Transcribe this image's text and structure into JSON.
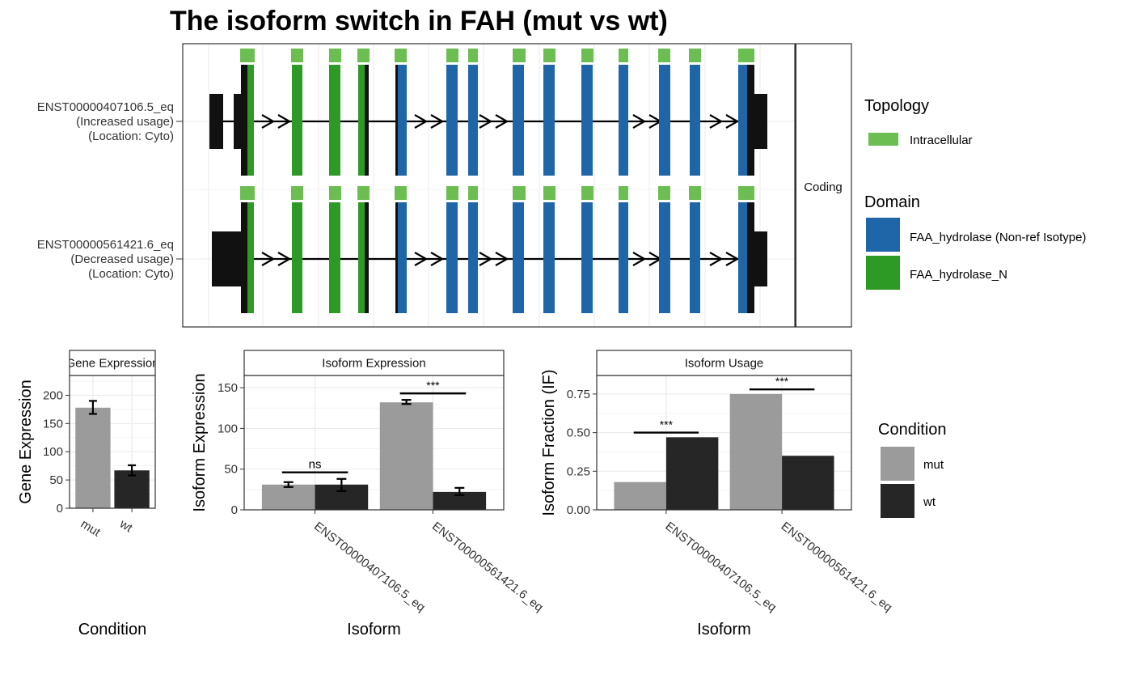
{
  "title": "The isoform switch in FAH (mut vs wt)",
  "colors": {
    "topology": "#6dbe52",
    "domain_nonref": "#1f66a8",
    "domain_n": "#2e9a26",
    "exon": "#111111",
    "mut": "#9b9b9b",
    "wt": "#262626",
    "grid": "#ebebeb",
    "border": "#333333"
  },
  "structure": {
    "strip_label": "Coding",
    "isoforms": [
      {
        "name": "ENST00000407106.5_eq",
        "usage": "(Increased usage)",
        "location": "(Location: Cyto)"
      },
      {
        "name": "ENST00000561421.6_eq",
        "usage": "(Decreased usage)",
        "location": "(Location: Cyto)"
      }
    ]
  },
  "legend": {
    "topology_title": "Topology",
    "topology_items": [
      {
        "label": "Intracellular",
        "color": "#6dbe52"
      }
    ],
    "domain_title": "Domain",
    "domain_items": [
      {
        "label": "FAA_hydrolase (Non-ref Isotype)",
        "color": "#1f66a8"
      },
      {
        "label": "FAA_hydrolase_N",
        "color": "#2e9a26"
      }
    ],
    "condition_title": "Condition",
    "condition_items": [
      {
        "label": "mut",
        "color": "#9b9b9b"
      },
      {
        "label": "wt",
        "color": "#262626"
      }
    ]
  },
  "chart_data": [
    {
      "type": "bar",
      "strip": "Gene Expression",
      "xlabel": "Condition",
      "ylabel": "Gene Expression",
      "ylim": [
        0,
        235
      ],
      "yticks": [
        0,
        50,
        100,
        150,
        200
      ],
      "categories": [
        "mut",
        "wt"
      ],
      "values": [
        178,
        67
      ],
      "errors": [
        [
          167,
          190
        ],
        [
          58,
          76
        ]
      ]
    },
    {
      "type": "bar",
      "strip": "Isoform Expression",
      "xlabel": "Isoform",
      "ylabel": "Isoform Expression",
      "ylim": [
        0,
        165
      ],
      "yticks": [
        0,
        50,
        100,
        150
      ],
      "categories": [
        "ENST00000407106.5_eq",
        "ENST00000561421.6_eq"
      ],
      "series": [
        {
          "name": "mut",
          "values": [
            31,
            132
          ],
          "errors": [
            [
              28,
              34
            ],
            [
              130,
              135
            ]
          ]
        },
        {
          "name": "wt",
          "values": [
            31,
            22
          ],
          "errors": [
            [
              23,
              38
            ],
            [
              18,
              27
            ]
          ]
        }
      ],
      "significance": [
        {
          "label": "ns",
          "y": 46
        },
        {
          "label": "***",
          "y": 143
        }
      ]
    },
    {
      "type": "bar",
      "strip": "Isoform Usage",
      "xlabel": "Isoform",
      "ylabel": "Isoform Fraction (IF)",
      "ylim": [
        0,
        0.87
      ],
      "yticks": [
        0.0,
        0.25,
        0.5,
        0.75
      ],
      "ytick_labels": [
        "0.00",
        "0.25",
        "0.50",
        "0.75"
      ],
      "categories": [
        "ENST00000407106.5_eq",
        "ENST00000561421.6_eq"
      ],
      "series": [
        {
          "name": "mut",
          "values": [
            0.18,
            0.75
          ]
        },
        {
          "name": "wt",
          "values": [
            0.47,
            0.35
          ]
        }
      ],
      "significance": [
        {
          "label": "***",
          "y": 0.5
        },
        {
          "label": "***",
          "y": 0.78
        }
      ]
    }
  ]
}
